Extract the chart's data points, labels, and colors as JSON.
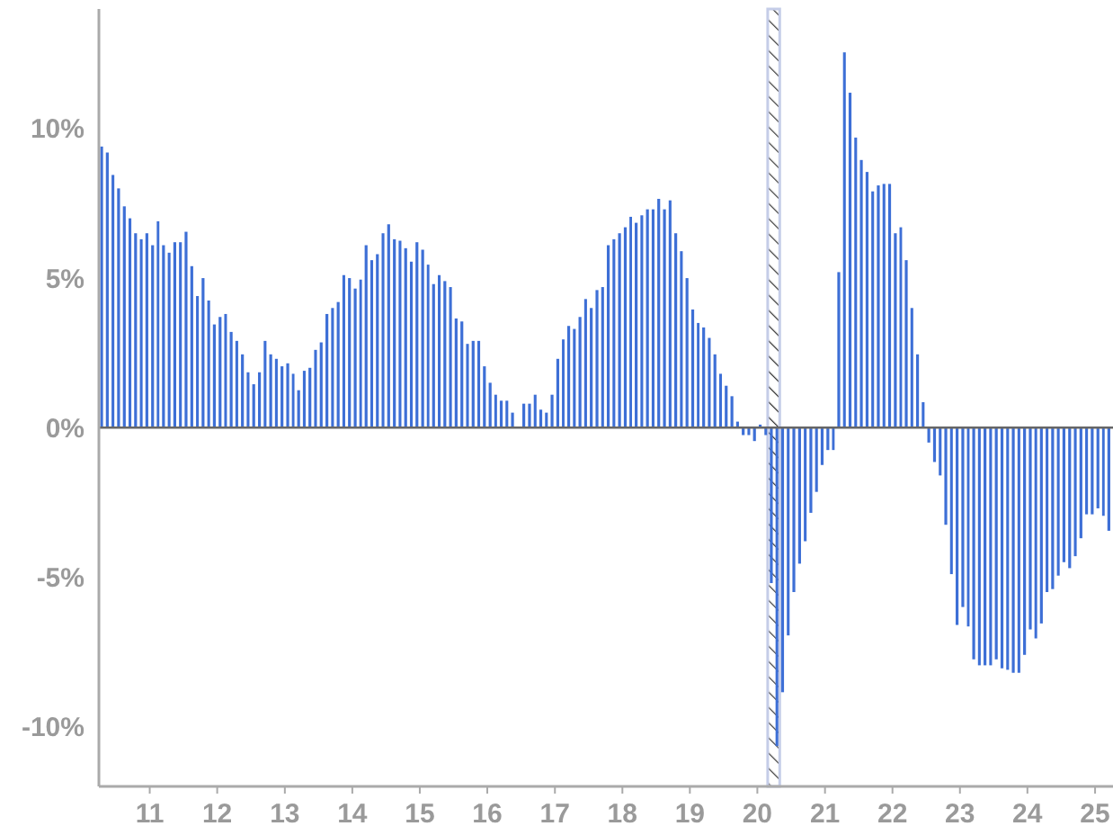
{
  "chart_data": {
    "type": "bar",
    "color": "#3d6fd6",
    "x": [
      "2010-04",
      "2010-05",
      "2010-06",
      "2010-07",
      "2010-08",
      "2010-09",
      "2010-10",
      "2010-11",
      "2010-12",
      "2011-01",
      "2011-02",
      "2011-03",
      "2011-04",
      "2011-05",
      "2011-06",
      "2011-07",
      "2011-08",
      "2011-09",
      "2011-10",
      "2011-11",
      "2011-12",
      "2012-01",
      "2012-02",
      "2012-03",
      "2012-04",
      "2012-05",
      "2012-06",
      "2012-07",
      "2012-08",
      "2012-09",
      "2012-10",
      "2012-11",
      "2012-12",
      "2013-01",
      "2013-02",
      "2013-03",
      "2013-04",
      "2013-05",
      "2013-06",
      "2013-07",
      "2013-08",
      "2013-09",
      "2013-10",
      "2013-11",
      "2013-12",
      "2014-01",
      "2014-02",
      "2014-03",
      "2014-04",
      "2014-05",
      "2014-06",
      "2014-07",
      "2014-08",
      "2014-09",
      "2014-10",
      "2014-11",
      "2014-12",
      "2015-01",
      "2015-02",
      "2015-03",
      "2015-04",
      "2015-05",
      "2015-06",
      "2015-07",
      "2015-08",
      "2015-09",
      "2015-10",
      "2015-11",
      "2015-12",
      "2016-01",
      "2016-02",
      "2016-03",
      "2016-04",
      "2016-05",
      "2016-06",
      "2016-07",
      "2016-08",
      "2016-09",
      "2016-10",
      "2016-11",
      "2016-12",
      "2017-01",
      "2017-02",
      "2017-03",
      "2017-04",
      "2017-05",
      "2017-06",
      "2017-07",
      "2017-08",
      "2017-09",
      "2017-10",
      "2017-11",
      "2017-12",
      "2018-01",
      "2018-02",
      "2018-03",
      "2018-04",
      "2018-05",
      "2018-06",
      "2018-07",
      "2018-08",
      "2018-09",
      "2018-10",
      "2018-11",
      "2018-12",
      "2019-01",
      "2019-02",
      "2019-03",
      "2019-04",
      "2019-05",
      "2019-06",
      "2019-07",
      "2019-08",
      "2019-09",
      "2019-10",
      "2019-11",
      "2019-12",
      "2020-01",
      "2020-02",
      "2020-03",
      "2020-04",
      "2020-05",
      "2020-06",
      "2020-07",
      "2020-08",
      "2020-09",
      "2020-10",
      "2020-11",
      "2020-12",
      "2021-01",
      "2021-02",
      "2021-03",
      "2021-04",
      "2021-05",
      "2021-06",
      "2021-07",
      "2021-08",
      "2021-09",
      "2021-10",
      "2021-11",
      "2021-12",
      "2022-01",
      "2022-02",
      "2022-03",
      "2022-04",
      "2022-05",
      "2022-06",
      "2022-07",
      "2022-08",
      "2022-09",
      "2022-10",
      "2022-11",
      "2022-12",
      "2023-01",
      "2023-02",
      "2023-03",
      "2023-04",
      "2023-05",
      "2023-06",
      "2023-07",
      "2023-08",
      "2023-09",
      "2023-10",
      "2023-11",
      "2023-12",
      "2024-01",
      "2024-02",
      "2024-03",
      "2024-04",
      "2024-05",
      "2024-06",
      "2024-07",
      "2024-08",
      "2024-09",
      "2024-10",
      "2024-11",
      "2024-12",
      "2025-01",
      "2025-02",
      "2025-03"
    ],
    "values": [
      9.4,
      9.2,
      8.45,
      8.0,
      7.4,
      7.0,
      6.5,
      6.3,
      6.5,
      6.1,
      6.9,
      6.1,
      5.85,
      6.2,
      6.2,
      6.55,
      5.4,
      4.4,
      5.0,
      4.25,
      3.45,
      3.7,
      3.8,
      3.2,
      2.9,
      2.45,
      1.85,
      1.45,
      1.85,
      2.9,
      2.45,
      2.3,
      2.05,
      2.15,
      1.8,
      1.25,
      1.9,
      2.0,
      2.6,
      2.85,
      3.8,
      4.0,
      4.2,
      5.1,
      5.0,
      4.65,
      4.95,
      6.1,
      5.6,
      5.8,
      6.5,
      6.8,
      6.3,
      6.25,
      6.0,
      5.55,
      6.2,
      5.95,
      5.45,
      4.8,
      5.1,
      4.9,
      4.7,
      3.65,
      3.55,
      2.8,
      2.9,
      2.9,
      2.05,
      1.5,
      1.1,
      0.9,
      0.9,
      0.5,
      0,
      0.8,
      0.8,
      1.1,
      0.6,
      0.5,
      1.1,
      2.3,
      2.95,
      3.4,
      3.3,
      3.7,
      4.3,
      4.0,
      4.6,
      4.7,
      6.1,
      6.3,
      6.5,
      6.7,
      7.05,
      6.85,
      7.1,
      7.3,
      7.3,
      7.65,
      7.3,
      7.6,
      6.5,
      5.9,
      5.0,
      3.95,
      3.5,
      3.35,
      3.0,
      2.45,
      1.8,
      1.4,
      1.05,
      0.2,
      -0.25,
      -0.25,
      -0.45,
      0.1,
      -0.25,
      -5.2,
      -10.65,
      -8.85,
      -6.95,
      -5.5,
      -4.55,
      -3.8,
      -2.85,
      -2.15,
      -1.25,
      -0.75,
      -0.75,
      5.2,
      12.55,
      11.2,
      9.7,
      8.95,
      8.55,
      7.9,
      8.1,
      8.15,
      8.15,
      6.5,
      6.7,
      5.6,
      4.0,
      2.45,
      0.85,
      -0.5,
      -1.15,
      -1.6,
      -3.25,
      -4.9,
      -6.6,
      -6.0,
      -6.65,
      -7.75,
      -7.95,
      -7.95,
      -7.95,
      -7.75,
      -8.05,
      -8.1,
      -8.2,
      -8.2,
      -7.6,
      -6.75,
      -7.05,
      -6.55,
      -5.5,
      -5.4,
      -4.95,
      -4.5,
      -4.7,
      -4.3,
      -3.7,
      -2.9,
      -2.9,
      -2.7,
      -2.95,
      -3.45
    ],
    "xlim": [
      "2010-04-01",
      "2025-04-08"
    ],
    "xticks": [
      {
        "value": "2011-01-01",
        "label": "11"
      },
      {
        "value": "2012-01-01",
        "label": "12"
      },
      {
        "value": "2013-01-01",
        "label": "13"
      },
      {
        "value": "2014-01-01",
        "label": "14"
      },
      {
        "value": "2015-01-01",
        "label": "15"
      },
      {
        "value": "2016-01-01",
        "label": "16"
      },
      {
        "value": "2017-01-01",
        "label": "17"
      },
      {
        "value": "2018-01-01",
        "label": "18"
      },
      {
        "value": "2019-01-01",
        "label": "19"
      },
      {
        "value": "2020-01-01",
        "label": "20"
      },
      {
        "value": "2021-01-01",
        "label": "21"
      },
      {
        "value": "2022-01-01",
        "label": "22"
      },
      {
        "value": "2023-01-01",
        "label": "23"
      },
      {
        "value": "2024-01-01",
        "label": "24"
      },
      {
        "value": "2025-01-01",
        "label": "25"
      }
    ],
    "ylim": [
      -12,
      14
    ],
    "yticks": [
      {
        "value": -10,
        "label": "-10%"
      },
      {
        "value": -5,
        "label": "-5%"
      },
      {
        "value": 0,
        "label": "0%"
      },
      {
        "value": 5,
        "label": "5%"
      },
      {
        "value": 10,
        "label": "10%"
      }
    ],
    "bands": [
      {
        "axis": "x",
        "from": "2020-02-26",
        "to": "2020-05-01",
        "color": "#c5cde8"
      }
    ]
  }
}
